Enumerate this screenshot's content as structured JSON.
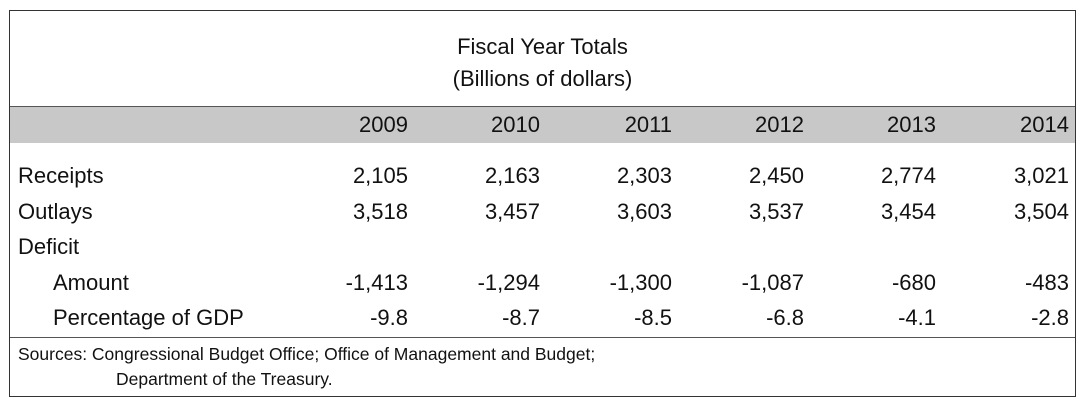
{
  "title": {
    "line1": "Fiscal Year Totals",
    "line2": "(Billions of dollars)"
  },
  "years": [
    "2009",
    "2010",
    "2011",
    "2012",
    "2013",
    "2014"
  ],
  "rows": {
    "receipts": {
      "label": "Receipts",
      "values": [
        "2,105",
        "2,163",
        "2,303",
        "2,450",
        "2,774",
        "3,021"
      ]
    },
    "outlays": {
      "label": "Outlays",
      "values": [
        "3,518",
        "3,457",
        "3,603",
        "3,537",
        "3,454",
        "3,504"
      ]
    },
    "deficit": {
      "label": "Deficit"
    },
    "amount": {
      "label": "Amount",
      "values": [
        "-1,413",
        "-1,294",
        "-1,300",
        "-1,087",
        "-680",
        "-483"
      ]
    },
    "pct_gdp": {
      "label": "Percentage of GDP",
      "values": [
        "-9.8",
        "-8.7",
        "-8.5",
        "-6.8",
        "-4.1",
        "-2.8"
      ]
    }
  },
  "sources": {
    "line1": "Sources: Congressional Budget Office; Office of Management and Budget;",
    "line2": "Department of the Treasury."
  }
}
